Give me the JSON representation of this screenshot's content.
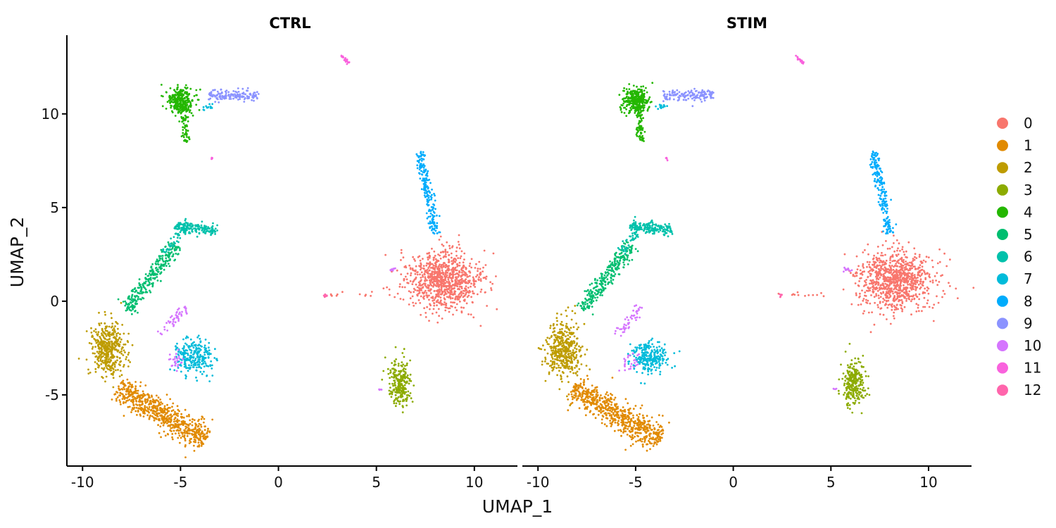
{
  "chart_data": {
    "type": "scatter",
    "xlabel": "UMAP_1",
    "ylabel": "UMAP_2",
    "xlim": [
      -10.8,
      12.2
    ],
    "ylim": [
      -8.8,
      14.2
    ],
    "x_ticks": [
      -10,
      -5,
      0,
      5,
      10
    ],
    "x_tick_labels": [
      "-10",
      "-5",
      "0",
      "5",
      "10"
    ],
    "y_ticks": [
      -5,
      0,
      5,
      10
    ],
    "y_tick_labels": [
      "-5",
      "0",
      "5",
      "10"
    ],
    "legend": {
      "position": "right"
    },
    "grid": false,
    "clusters": [
      {
        "name": "0",
        "color": "#F8766D"
      },
      {
        "name": "1",
        "color": "#E18A00"
      },
      {
        "name": "2",
        "color": "#BE9C00"
      },
      {
        "name": "3",
        "color": "#8CAB00"
      },
      {
        "name": "4",
        "color": "#24B700"
      },
      {
        "name": "5",
        "color": "#00BE70"
      },
      {
        "name": "6",
        "color": "#00C1AB"
      },
      {
        "name": "7",
        "color": "#00BBDA"
      },
      {
        "name": "8",
        "color": "#00ACFC"
      },
      {
        "name": "9",
        "color": "#8B93FF"
      },
      {
        "name": "10",
        "color": "#D575FE"
      },
      {
        "name": "11",
        "color": "#F962DD"
      },
      {
        "name": "12",
        "color": "#FF65AC"
      }
    ],
    "facets": [
      {
        "title": "CTRL"
      },
      {
        "title": "STIM"
      }
    ],
    "cluster_regions": [
      {
        "cluster": "0",
        "shape": "blob",
        "center": [
          8.4,
          1.1
        ],
        "spread": [
          1.9,
          1.6
        ],
        "n": 900
      },
      {
        "cluster": "0",
        "shape": "segment",
        "from": [
          2.3,
          0.3
        ],
        "to": [
          4.8,
          0.4
        ],
        "n": 12
      },
      {
        "cluster": "1",
        "shape": "segment",
        "from": [
          -8.2,
          -4.6
        ],
        "to": [
          -3.7,
          -7.4
        ],
        "width": 0.75,
        "n": 650
      },
      {
        "cluster": "2",
        "shape": "blob",
        "center": [
          -8.7,
          -2.6
        ],
        "spread": [
          0.85,
          1.45
        ],
        "n": 420
      },
      {
        "cluster": "3",
        "shape": "blob",
        "center": [
          6.2,
          -4.4
        ],
        "spread": [
          0.55,
          1.2
        ],
        "n": 260
      },
      {
        "cluster": "4",
        "shape": "blob",
        "center": [
          -5.0,
          10.7
        ],
        "spread": [
          0.65,
          0.7
        ],
        "n": 300
      },
      {
        "cluster": "4",
        "shape": "segment",
        "from": [
          -4.9,
          10.4
        ],
        "to": [
          -4.7,
          8.5
        ],
        "width": 0.22,
        "n": 70
      },
      {
        "cluster": "5",
        "shape": "segment",
        "from": [
          -7.8,
          -0.5
        ],
        "to": [
          -5.2,
          3.0
        ],
        "width": 0.4,
        "n": 280
      },
      {
        "cluster": "6",
        "shape": "segment",
        "from": [
          -5.3,
          4.0
        ],
        "to": [
          -3.1,
          3.8
        ],
        "width": 0.3,
        "n": 170
      },
      {
        "cluster": "6",
        "shape": "segment",
        "from": [
          -4.7,
          4.0
        ],
        "to": [
          -5.8,
          2.6
        ],
        "width": 0.25,
        "n": 50
      },
      {
        "cluster": "7",
        "shape": "blob",
        "center": [
          -4.3,
          -3.0
        ],
        "spread": [
          1.0,
          0.9
        ],
        "n": 260
      },
      {
        "cluster": "7",
        "shape": "blob",
        "center": [
          -3.6,
          10.4
        ],
        "spread": [
          0.3,
          0.2
        ],
        "n": 15
      },
      {
        "cluster": "8",
        "shape": "segment",
        "from": [
          7.2,
          8.0
        ],
        "to": [
          8.0,
          3.6
        ],
        "width": 0.25,
        "n": 200
      },
      {
        "cluster": "9",
        "shape": "segment",
        "from": [
          -3.6,
          11.0
        ],
        "to": [
          -1.0,
          11.0
        ],
        "width": 0.3,
        "n": 150
      },
      {
        "cluster": "10",
        "shape": "segment",
        "from": [
          -6.0,
          -1.8
        ],
        "to": [
          -4.7,
          -0.3
        ],
        "width": 0.25,
        "n": 45
      },
      {
        "cluster": "10",
        "shape": "blob",
        "center": [
          -5.3,
          -3.2
        ],
        "spread": [
          0.4,
          0.5
        ],
        "n": 25
      },
      {
        "cluster": "10",
        "shape": "blob",
        "center": [
          5.8,
          1.7
        ],
        "spread": [
          0.25,
          0.1
        ],
        "n": 12
      },
      {
        "cluster": "10",
        "shape": "blob",
        "center": [
          5.2,
          -4.7
        ],
        "spread": [
          0.1,
          0.1
        ],
        "n": 4
      },
      {
        "cluster": "11",
        "shape": "segment",
        "from": [
          3.2,
          13.1
        ],
        "to": [
          3.6,
          12.7
        ],
        "width": 0.08,
        "n": 22
      },
      {
        "cluster": "11",
        "shape": "blob",
        "center": [
          -3.4,
          7.6
        ],
        "spread": [
          0.05,
          0.08
        ],
        "n": 5
      },
      {
        "cluster": "12",
        "shape": "blob",
        "center": [
          2.4,
          0.3
        ],
        "spread": [
          0.12,
          0.06
        ],
        "n": 6
      }
    ]
  }
}
